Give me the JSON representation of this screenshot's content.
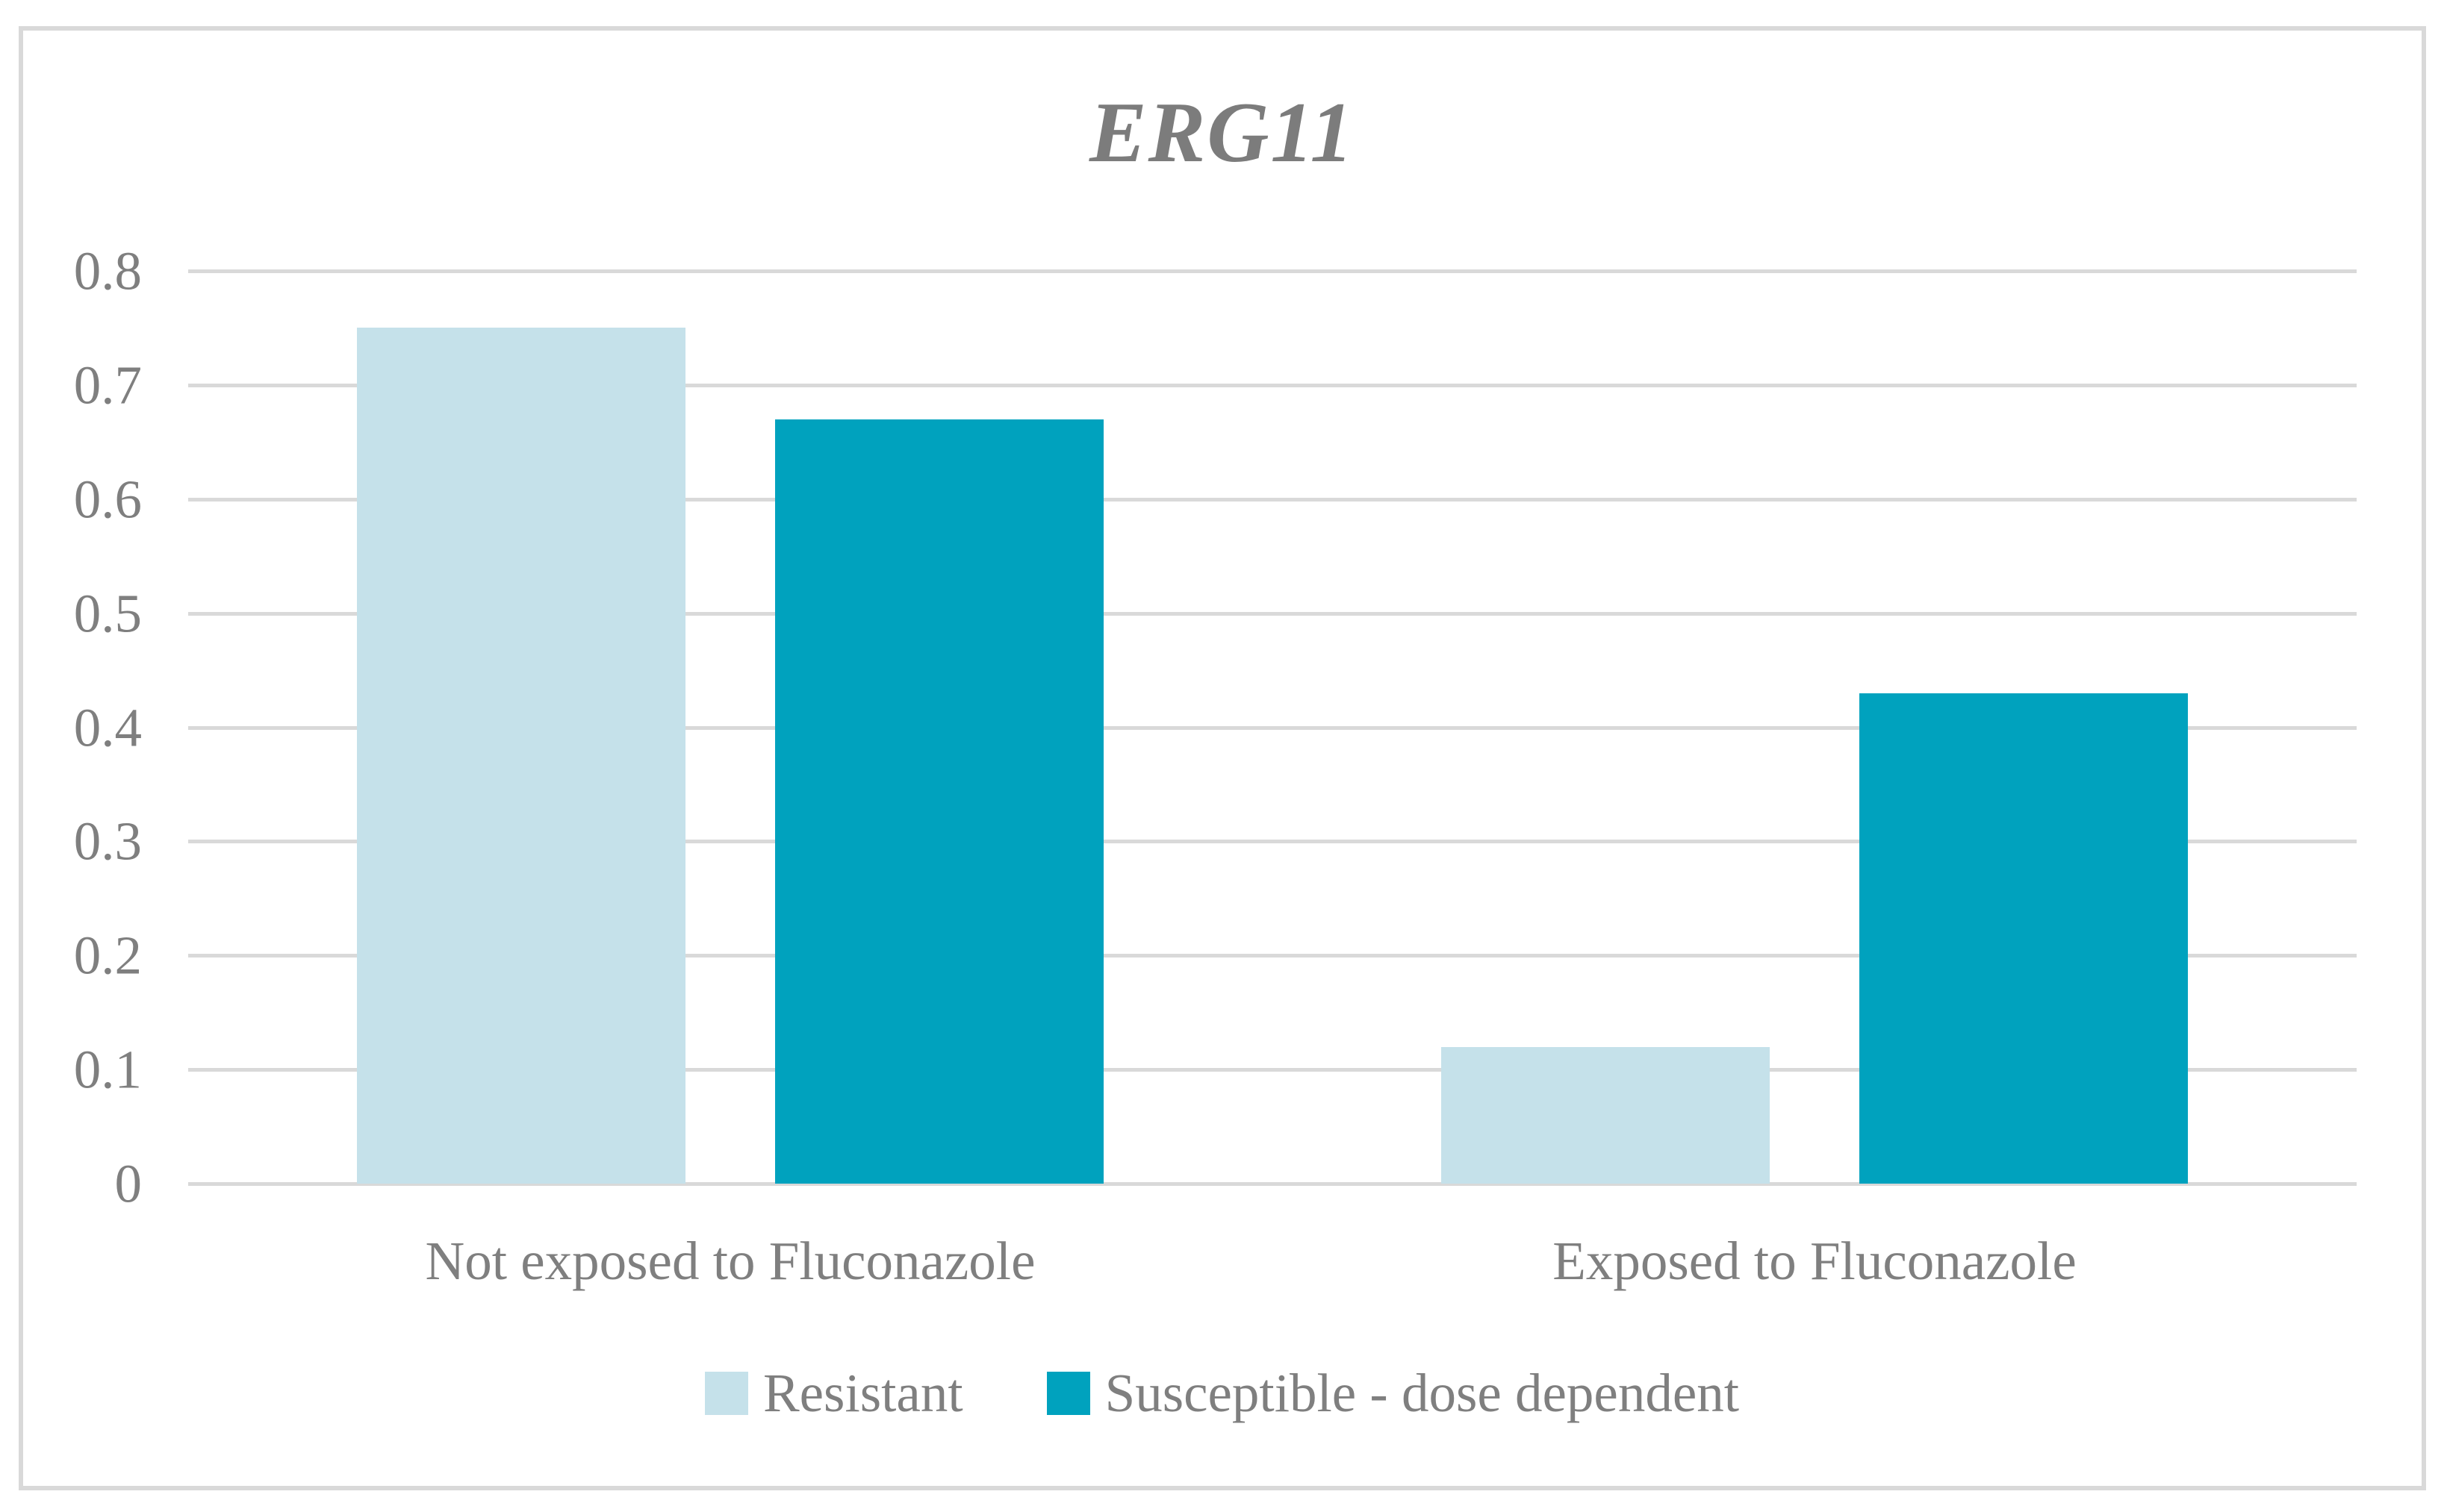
{
  "title": "ERG11",
  "palette": {
    "series_resistant": "#C5E1EA",
    "series_susceptible": "#00A2BE",
    "gridline": "#D9D9D9",
    "frame_border": "#D9D9D9",
    "text_gray": "#7F7F7F",
    "title_gray": "#7C7C7C",
    "background": "#FFFFFF"
  },
  "chart_data": {
    "type": "bar",
    "title": "ERG11",
    "categories": [
      "Not exposed to Fluconazole",
      "Exposed to Fluconazole"
    ],
    "series": [
      {
        "name": "Resistant",
        "color": "#C5E1EA",
        "values": [
          0.75,
          0.12
        ]
      },
      {
        "name": "Susceptible - dose dependent",
        "color": "#00A2BE",
        "values": [
          0.67,
          0.43
        ]
      }
    ],
    "xlabel": "",
    "ylabel": "",
    "ylim": [
      0,
      0.8
    ],
    "yticks": [
      {
        "value": 0.8,
        "label": "0.8"
      },
      {
        "value": 0.7,
        "label": "0.7"
      },
      {
        "value": 0.6,
        "label": "0.6"
      },
      {
        "value": 0.5,
        "label": "0.5"
      },
      {
        "value": 0.4,
        "label": "0.4"
      },
      {
        "value": 0.3,
        "label": "0.3"
      },
      {
        "value": 0.2,
        "label": "0.2"
      },
      {
        "value": 0.1,
        "label": "0.1"
      },
      {
        "value": 0.0,
        "label": "0"
      }
    ],
    "grid": true,
    "legend_position": "bottom"
  }
}
